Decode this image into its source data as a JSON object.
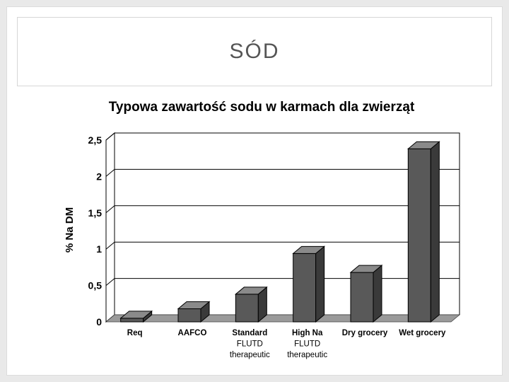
{
  "slide": {
    "title": "SÓD"
  },
  "chart_data": {
    "type": "bar",
    "title": "Typowa zawartość sodu w karmach dla zwierząt",
    "ylabel": "% Na DM",
    "xlabel": "",
    "ylim": [
      0,
      2.5
    ],
    "yticks": [
      "0",
      "0,5",
      "1",
      "1,5",
      "2",
      "2,5"
    ],
    "ytick_values": [
      0,
      0.5,
      1,
      1.5,
      2,
      2.5
    ],
    "grid": true,
    "categories": [
      [
        "Req"
      ],
      [
        "AAFCO"
      ],
      [
        "Standard",
        "FLUTD",
        "therapeutic"
      ],
      [
        "High Na",
        "FLUTD",
        "therapeutic"
      ],
      [
        "Dry grocery"
      ],
      [
        "Wet grocery"
      ]
    ],
    "values": [
      0.05,
      0.18,
      0.38,
      0.94,
      0.68,
      2.38
    ],
    "colors": {
      "bar_front": "#595959",
      "bar_side": "#3a3a3a",
      "bar_top": "#8a8a8a",
      "floor": "#9a9a9a"
    }
  }
}
